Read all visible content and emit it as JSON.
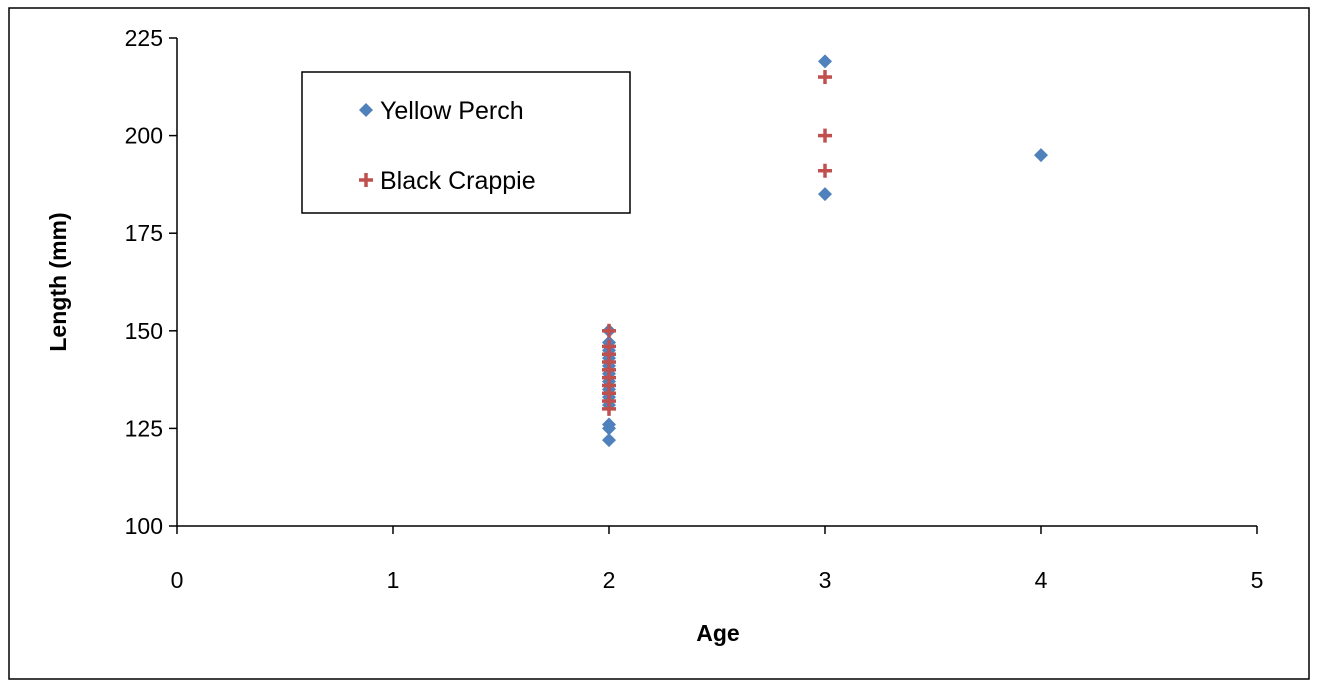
{
  "chart_data": {
    "type": "scatter",
    "title": "",
    "xlabel": "Age",
    "ylabel": "Length (mm)",
    "xlim": [
      0,
      5
    ],
    "ylim": [
      100,
      225
    ],
    "xticks": [
      "0",
      "1",
      "2",
      "3",
      "4",
      "5"
    ],
    "yticks": [
      "100",
      "125",
      "150",
      "175",
      "200",
      "225"
    ],
    "grid": false,
    "legend_position": "top-left",
    "series": [
      {
        "name": "Yellow Perch",
        "marker": "diamond",
        "color": "#4F81BD",
        "points": [
          [
            2,
            150
          ],
          [
            2,
            147
          ],
          [
            2,
            145
          ],
          [
            2,
            143
          ],
          [
            2,
            141
          ],
          [
            2,
            139
          ],
          [
            2,
            137
          ],
          [
            2,
            135
          ],
          [
            2,
            133
          ],
          [
            2,
            131
          ],
          [
            2,
            126
          ],
          [
            2,
            125
          ],
          [
            2,
            122
          ],
          [
            3,
            219
          ],
          [
            3,
            185
          ],
          [
            4,
            195
          ]
        ]
      },
      {
        "name": "Black Crappie",
        "marker": "plus",
        "color": "#C0504D",
        "points": [
          [
            2,
            150
          ],
          [
            2,
            146
          ],
          [
            2,
            144
          ],
          [
            2,
            142
          ],
          [
            2,
            140
          ],
          [
            2,
            138
          ],
          [
            2,
            136
          ],
          [
            2,
            134
          ],
          [
            2,
            132
          ],
          [
            2,
            130
          ],
          [
            3,
            215
          ],
          [
            3,
            200
          ],
          [
            3,
            191
          ]
        ]
      }
    ]
  }
}
